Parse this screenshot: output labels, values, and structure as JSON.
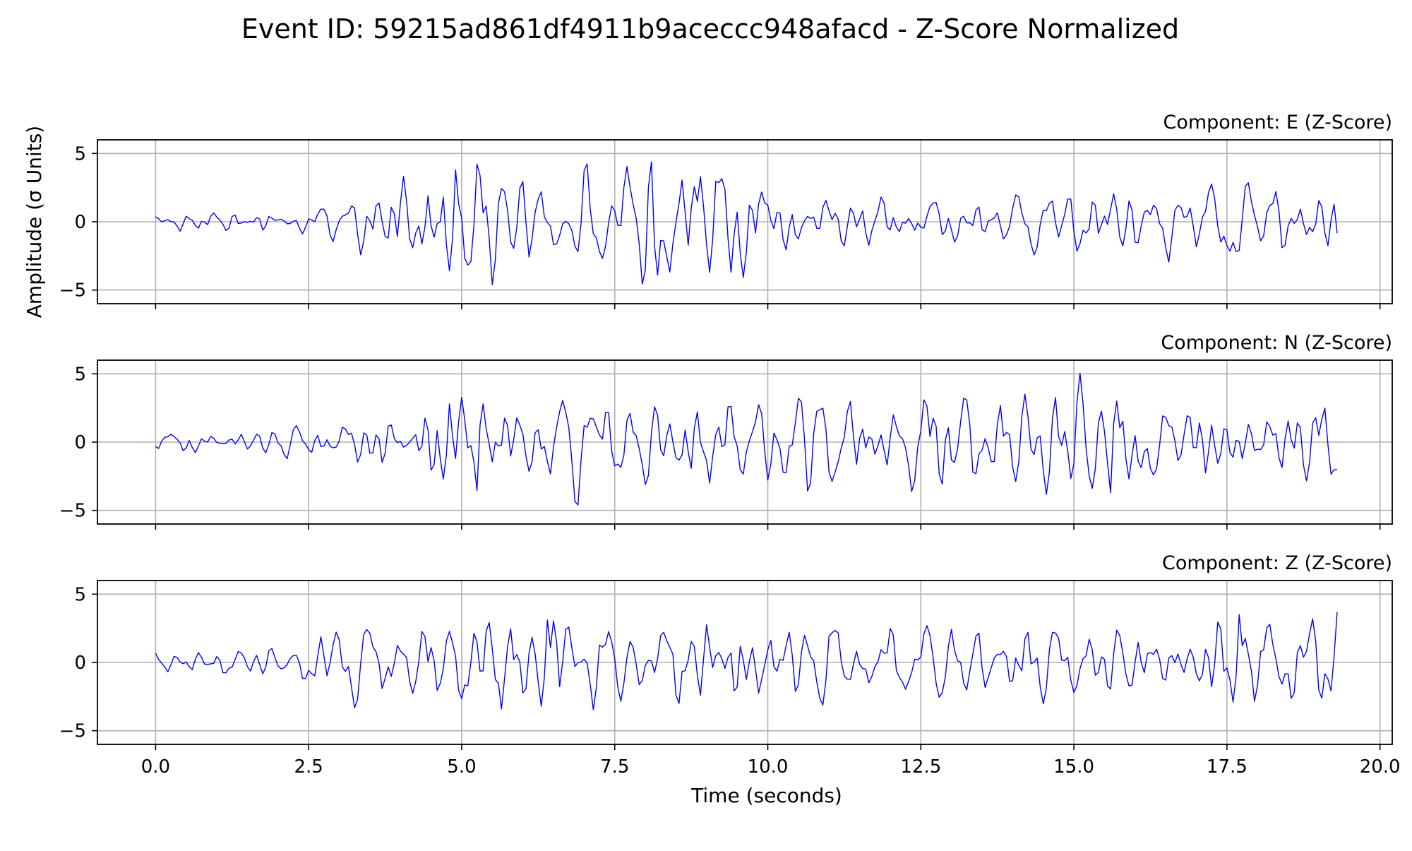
{
  "chart_data": {
    "type": "line",
    "title": "Event ID: 59215ad861df4911b9aceccc948afacd - Z-Score Normalized",
    "xlabel": "Time (seconds)",
    "ylabel": "Amplitude (σ Units)",
    "xlim": [
      -0.95,
      20.2
    ],
    "ylim": [
      -6,
      6
    ],
    "xticks": [
      0.0,
      2.5,
      5.0,
      7.5,
      10.0,
      12.5,
      15.0,
      17.5,
      20.0
    ],
    "xtick_labels": [
      "0.0",
      "2.5",
      "5.0",
      "7.5",
      "10.0",
      "12.5",
      "15.0",
      "17.5",
      "20.0"
    ],
    "yticks": [
      5,
      0,
      -5
    ],
    "ytick_labels": [
      "5",
      "0",
      "−5"
    ],
    "grid": true,
    "line_color": "#0000ff",
    "grid_color": "#b0b0b0",
    "sample_rate_hz": 20,
    "duration_s": 19.3,
    "panels": [
      {
        "title": "Component: E (Z-Score)",
        "envelope": {
          "t": [
            0.0,
            2.5,
            3.5,
            4.8,
            5.5,
            6.3,
            7.0,
            8.2,
            8.9,
            10.0,
            11.0,
            12.5,
            14.0,
            15.5,
            17.0,
            17.7,
            19.3
          ],
          "amp": [
            0.5,
            0.6,
            1.2,
            2.8,
            2.2,
            2.2,
            1.8,
            2.8,
            3.0,
            1.5,
            1.5,
            1.0,
            1.1,
            1.4,
            1.5,
            1.8,
            1.6
          ]
        },
        "extrema": [
          {
            "t": 4.88,
            "value": 3.8
          },
          {
            "t": 4.78,
            "value": -3.6
          },
          {
            "t": 8.18,
            "value": -3.9
          },
          {
            "t": 8.88,
            "value": 3.3
          },
          {
            "t": 9.05,
            "value": -3.7
          }
        ]
      },
      {
        "title": "Component: N (Z-Score)",
        "envelope": {
          "t": [
            0.0,
            2.5,
            3.5,
            4.7,
            5.4,
            6.5,
            7.6,
            9.0,
            10.0,
            12.0,
            13.0,
            14.5,
            15.7,
            16.5,
            17.5,
            18.5,
            19.3
          ],
          "amp": [
            0.6,
            0.6,
            1.0,
            1.8,
            2.2,
            2.0,
            2.0,
            2.4,
            1.8,
            2.0,
            1.8,
            2.0,
            2.6,
            1.6,
            1.7,
            1.6,
            2.0
          ]
        },
        "extrema": [
          {
            "t": 4.72,
            "value": -2.7
          },
          {
            "t": 5.35,
            "value": 2.8
          },
          {
            "t": 9.05,
            "value": -3.0
          },
          {
            "t": 15.72,
            "value": 3.0
          },
          {
            "t": 15.9,
            "value": -2.7
          }
        ]
      },
      {
        "title": "Component: Z (Z-Score)",
        "envelope": {
          "t": [
            0.0,
            2.3,
            2.6,
            3.5,
            5.0,
            5.6,
            6.5,
            8.0,
            9.5,
            10.5,
            12.0,
            14.0,
            15.5,
            16.5,
            17.5,
            18.0,
            19.3
          ],
          "amp": [
            0.6,
            0.6,
            1.4,
            1.8,
            2.0,
            2.4,
            2.4,
            2.0,
            2.4,
            1.8,
            1.7,
            1.6,
            1.6,
            1.4,
            2.0,
            2.3,
            1.6
          ]
        },
        "extrema": [
          {
            "t": 5.65,
            "value": -3.4
          },
          {
            "t": 6.38,
            "value": 3.1
          },
          {
            "t": 6.32,
            "value": -3.2
          },
          {
            "t": 17.7,
            "value": 3.5
          },
          {
            "t": 17.62,
            "value": -2.9
          }
        ]
      }
    ]
  }
}
